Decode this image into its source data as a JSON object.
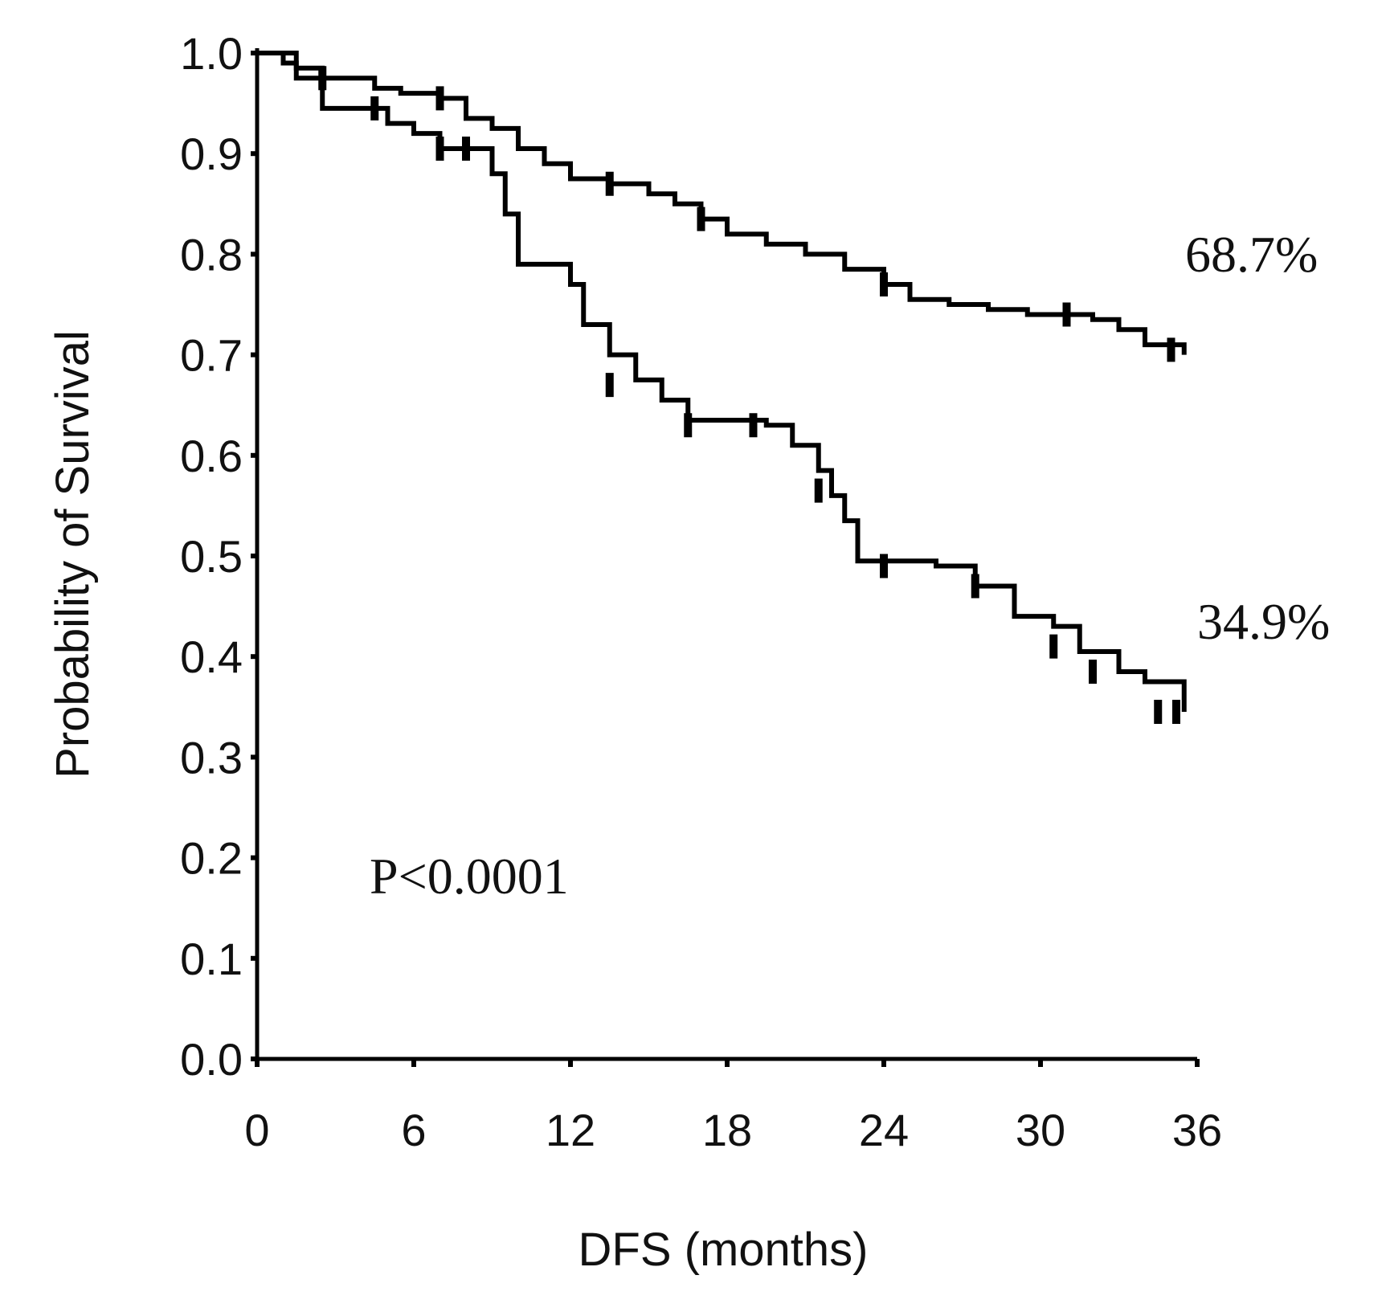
{
  "chart_data": {
    "type": "line",
    "subtype": "kaplan-meier",
    "xlabel": "DFS (months)",
    "ylabel": "Probability of Survival",
    "xlim": [
      0,
      36
    ],
    "ylim": [
      0.0,
      1.0
    ],
    "x_ticks": [
      "0",
      "6",
      "12",
      "18",
      "24",
      "30",
      "36"
    ],
    "x_tick_values": [
      0,
      6,
      12,
      18,
      24,
      30,
      36
    ],
    "y_ticks": [
      "0.0",
      "0.1",
      "0.2",
      "0.3",
      "0.4",
      "0.5",
      "0.6",
      "0.7",
      "0.8",
      "0.9",
      "1.0"
    ],
    "y_tick_values": [
      0.0,
      0.1,
      0.2,
      0.3,
      0.4,
      0.5,
      0.6,
      0.7,
      0.8,
      0.9,
      1.0
    ],
    "annotations": {
      "p_value": "P<0.0001",
      "upper_final": "68.7%",
      "lower_final": "34.9%"
    },
    "series": [
      {
        "name": "upper",
        "style": "solid",
        "x": [
          0,
          1.0,
          1.5,
          2.5,
          3.5,
          4.5,
          5.5,
          7.0,
          8.0,
          9.0,
          10.0,
          11.0,
          12.0,
          13.5,
          15.0,
          16.0,
          17.0,
          18.0,
          19.5,
          21.0,
          22.5,
          24.0,
          25.0,
          26.5,
          28.0,
          29.5,
          31.0,
          32.0,
          33.0,
          34.0,
          35.5
        ],
        "y": [
          1.0,
          0.99,
          0.985,
          0.975,
          0.975,
          0.965,
          0.96,
          0.955,
          0.935,
          0.925,
          0.905,
          0.89,
          0.875,
          0.87,
          0.86,
          0.85,
          0.835,
          0.82,
          0.81,
          0.8,
          0.785,
          0.77,
          0.755,
          0.75,
          0.745,
          0.74,
          0.74,
          0.735,
          0.725,
          0.71,
          0.7
        ]
      },
      {
        "name": "lower",
        "style": "step",
        "x": [
          0,
          1.5,
          2.5,
          4.0,
          5.0,
          6.0,
          7.0,
          8.5,
          9.0,
          9.5,
          10.0,
          12.0,
          12.5,
          13.5,
          14.5,
          15.5,
          16.5,
          19.5,
          20.5,
          21.5,
          22.0,
          22.5,
          23.0,
          26.0,
          27.5,
          29.0,
          30.5,
          31.5,
          33.0,
          34.0,
          35.5
        ],
        "y": [
          1.0,
          0.975,
          0.945,
          0.945,
          0.93,
          0.92,
          0.905,
          0.905,
          0.88,
          0.84,
          0.79,
          0.77,
          0.73,
          0.7,
          0.675,
          0.655,
          0.635,
          0.63,
          0.61,
          0.585,
          0.56,
          0.535,
          0.495,
          0.49,
          0.47,
          0.44,
          0.43,
          0.405,
          0.385,
          0.375,
          0.345
        ]
      }
    ],
    "censor_marks": {
      "upper": [
        [
          2.5,
          0.975
        ],
        [
          7.0,
          0.955
        ],
        [
          13.5,
          0.87
        ],
        [
          17.0,
          0.835
        ],
        [
          24.0,
          0.77
        ],
        [
          31.0,
          0.74
        ],
        [
          35.0,
          0.705
        ]
      ],
      "lower": [
        [
          4.5,
          0.945
        ],
        [
          7.0,
          0.905
        ],
        [
          8.0,
          0.905
        ],
        [
          13.5,
          0.67
        ],
        [
          16.5,
          0.63
        ],
        [
          19.0,
          0.63
        ],
        [
          21.5,
          0.565
        ],
        [
          24.0,
          0.49
        ],
        [
          27.5,
          0.47
        ],
        [
          30.5,
          0.41
        ],
        [
          32.0,
          0.385
        ],
        [
          34.5,
          0.345
        ],
        [
          35.2,
          0.345
        ]
      ]
    }
  }
}
